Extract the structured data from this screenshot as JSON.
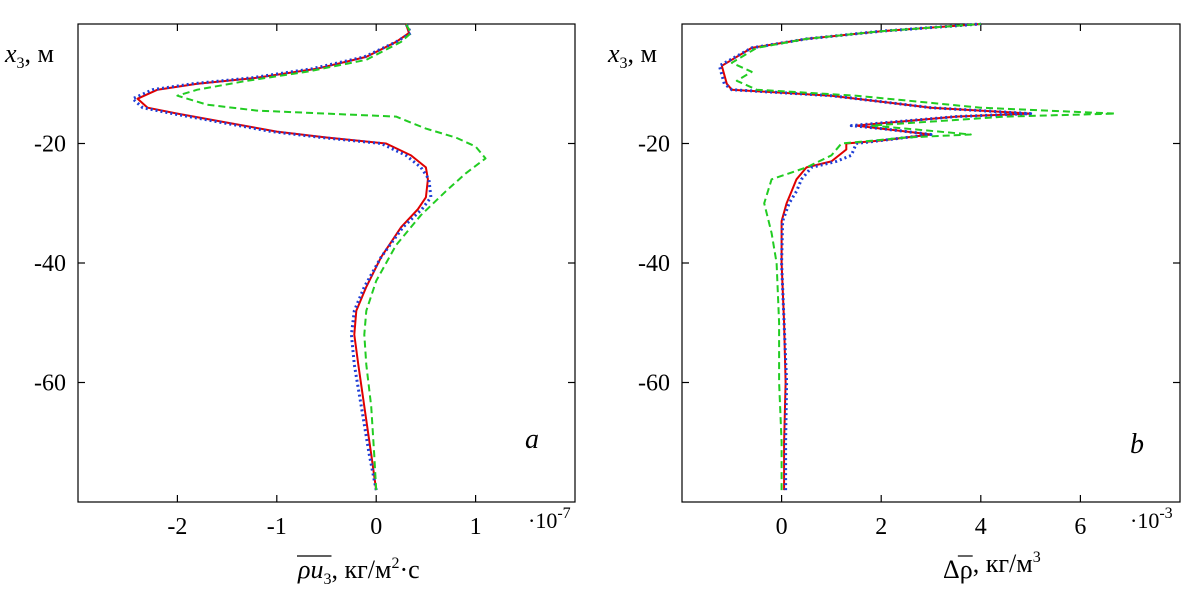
{
  "chart_data": [
    {
      "type": "line",
      "panel_label": "a",
      "xlabel_parts": {
        "main": "ρu",
        "sub": "3",
        "units": ", кг/м",
        "sup": "2",
        "tail": "·с"
      },
      "ylabel_parts": {
        "main": "x",
        "sub": "3",
        "units": ", м"
      },
      "x_scale_label": {
        "base": "·10",
        "exp": "-7"
      },
      "xlim": [
        -3.0,
        2.0
      ],
      "ylim": [
        -80,
        0
      ],
      "xticks": [
        -2,
        -1,
        0,
        1
      ],
      "xtick_labels": [
        "-2",
        "-1",
        "0",
        "1"
      ],
      "yticks": [
        -20,
        -40,
        -60
      ],
      "ytick_labels": [
        "-20",
        "-40",
        "-60"
      ],
      "series": [
        {
          "color": "#e00000",
          "dash": "solid",
          "width": 2,
          "points": [
            [
              0.0,
              -78
            ],
            [
              -0.05,
              -72
            ],
            [
              -0.12,
              -64
            ],
            [
              -0.18,
              -57
            ],
            [
              -0.22,
              -52
            ],
            [
              -0.2,
              -48
            ],
            [
              -0.1,
              -44
            ],
            [
              0.05,
              -39
            ],
            [
              0.25,
              -34
            ],
            [
              0.42,
              -31
            ],
            [
              0.5,
              -29
            ],
            [
              0.52,
              -26
            ],
            [
              0.5,
              -24
            ],
            [
              0.35,
              -22
            ],
            [
              0.1,
              -20
            ],
            [
              -0.5,
              -19
            ],
            [
              -1.0,
              -18
            ],
            [
              -1.5,
              -16.5
            ],
            [
              -2.0,
              -15
            ],
            [
              -2.3,
              -14
            ],
            [
              -2.4,
              -12.5
            ],
            [
              -2.2,
              -11
            ],
            [
              -1.8,
              -10
            ],
            [
              -1.2,
              -9
            ],
            [
              -0.6,
              -7.5
            ],
            [
              -0.1,
              -5.5
            ],
            [
              0.2,
              -3
            ],
            [
              0.33,
              -1.5
            ],
            [
              0.3,
              0
            ]
          ]
        },
        {
          "color": "#1f3fd6",
          "dash": "dotted",
          "width": 3,
          "points": [
            [
              0.0,
              -78
            ],
            [
              -0.07,
              -72
            ],
            [
              -0.15,
              -64
            ],
            [
              -0.22,
              -57
            ],
            [
              -0.25,
              -52
            ],
            [
              -0.22,
              -48
            ],
            [
              -0.12,
              -44
            ],
            [
              0.05,
              -39
            ],
            [
              0.27,
              -34
            ],
            [
              0.46,
              -31
            ],
            [
              0.55,
              -29
            ],
            [
              0.53,
              -26
            ],
            [
              0.45,
              -24
            ],
            [
              0.3,
              -22
            ],
            [
              0.05,
              -20
            ],
            [
              -0.55,
              -19
            ],
            [
              -1.05,
              -18
            ],
            [
              -1.55,
              -16.5
            ],
            [
              -2.05,
              -15
            ],
            [
              -2.35,
              -14
            ],
            [
              -2.45,
              -12.5
            ],
            [
              -2.25,
              -11
            ],
            [
              -1.85,
              -10
            ],
            [
              -1.25,
              -9
            ],
            [
              -0.65,
              -7.5
            ],
            [
              -0.12,
              -5.5
            ],
            [
              0.2,
              -3
            ],
            [
              0.35,
              -1.5
            ],
            [
              0.3,
              0
            ]
          ]
        },
        {
          "color": "#22cc22",
          "dash": "dashed",
          "width": 2,
          "points": [
            [
              0.0,
              -78
            ],
            [
              -0.02,
              -72
            ],
            [
              -0.05,
              -64
            ],
            [
              -0.1,
              -57
            ],
            [
              -0.12,
              -52
            ],
            [
              -0.1,
              -48
            ],
            [
              0.0,
              -43
            ],
            [
              0.2,
              -37
            ],
            [
              0.45,
              -32
            ],
            [
              0.7,
              -28
            ],
            [
              0.9,
              -25
            ],
            [
              1.1,
              -22.5
            ],
            [
              1.0,
              -20.5
            ],
            [
              0.8,
              -19
            ],
            [
              0.5,
              -17.5
            ],
            [
              0.2,
              -15.5
            ],
            [
              -0.5,
              -15
            ],
            [
              -1.2,
              -14.5
            ],
            [
              -1.7,
              -13.5
            ],
            [
              -2.0,
              -12
            ],
            [
              -1.8,
              -11
            ],
            [
              -1.3,
              -9.5
            ],
            [
              -0.7,
              -8
            ],
            [
              -0.1,
              -6
            ],
            [
              0.25,
              -3
            ],
            [
              0.35,
              -1.5
            ],
            [
              0.3,
              0
            ]
          ]
        }
      ]
    },
    {
      "type": "line",
      "panel_label": "b",
      "xlabel_parts": {
        "main": "Δρ",
        "sub": "",
        "units": ", кг/м",
        "sup": "3",
        "tail": ""
      },
      "ylabel_parts": {
        "main": "x",
        "sub": "3",
        "units": ", м"
      },
      "x_scale_label": {
        "base": "·10",
        "exp": "-3"
      },
      "xlim": [
        -2.0,
        8.0
      ],
      "ylim": [
        -80,
        0
      ],
      "xticks": [
        0,
        2,
        4,
        6
      ],
      "xtick_labels": [
        "0",
        "2",
        "4",
        "6"
      ],
      "yticks": [
        -20,
        -40,
        -60
      ],
      "ytick_labels": [
        "-20",
        "-40",
        "-60"
      ],
      "series": [
        {
          "color": "#e00000",
          "dash": "solid",
          "width": 2,
          "points": [
            [
              0.05,
              -78
            ],
            [
              0.05,
              -70
            ],
            [
              0.08,
              -60
            ],
            [
              0.05,
              -50
            ],
            [
              0.0,
              -40
            ],
            [
              0.0,
              -33
            ],
            [
              0.1,
              -30
            ],
            [
              0.2,
              -28
            ],
            [
              0.3,
              -26
            ],
            [
              0.5,
              -24
            ],
            [
              1.0,
              -23
            ],
            [
              1.3,
              -21
            ],
            [
              1.3,
              -20
            ],
            [
              2.0,
              -19.5
            ],
            [
              3.0,
              -18.5
            ],
            [
              2.0,
              -17.5
            ],
            [
              1.5,
              -17
            ],
            [
              3.5,
              -15.5
            ],
            [
              5.0,
              -15
            ],
            [
              3.0,
              -14
            ],
            [
              1.0,
              -12
            ],
            [
              -1.0,
              -11
            ],
            [
              -1.1,
              -10
            ],
            [
              -1.2,
              -7
            ],
            [
              -0.6,
              -4
            ],
            [
              0.5,
              -2.5
            ],
            [
              2.0,
              -1.2
            ],
            [
              4.0,
              0
            ]
          ]
        },
        {
          "color": "#1f3fd6",
          "dash": "dotted",
          "width": 3,
          "points": [
            [
              0.08,
              -78
            ],
            [
              0.08,
              -70
            ],
            [
              0.1,
              -60
            ],
            [
              0.05,
              -50
            ],
            [
              0.0,
              -40
            ],
            [
              0.02,
              -33
            ],
            [
              0.15,
              -30
            ],
            [
              0.3,
              -28
            ],
            [
              0.4,
              -26
            ],
            [
              0.6,
              -24
            ],
            [
              1.1,
              -23
            ],
            [
              1.4,
              -22
            ],
            [
              1.5,
              -20
            ],
            [
              2.0,
              -19.5
            ],
            [
              3.0,
              -18.5
            ],
            [
              2.0,
              -17.5
            ],
            [
              1.4,
              -17
            ],
            [
              3.5,
              -15.5
            ],
            [
              5.0,
              -15
            ],
            [
              3.0,
              -14
            ],
            [
              1.0,
              -12
            ],
            [
              -1.0,
              -11
            ],
            [
              -1.15,
              -10
            ],
            [
              -1.25,
              -7
            ],
            [
              -0.6,
              -4
            ],
            [
              0.5,
              -2.5
            ],
            [
              2.0,
              -1.2
            ],
            [
              4.0,
              0
            ]
          ]
        },
        {
          "color": "#22cc22",
          "dash": "dashed",
          "width": 2,
          "points": [
            [
              0.0,
              -78
            ],
            [
              0.0,
              -70
            ],
            [
              -0.05,
              -60
            ],
            [
              -0.05,
              -50
            ],
            [
              -0.1,
              -40
            ],
            [
              -0.2,
              -35
            ],
            [
              -0.35,
              -30
            ],
            [
              -0.2,
              -26
            ],
            [
              0.5,
              -24
            ],
            [
              1.0,
              -22
            ],
            [
              1.2,
              -20
            ],
            [
              2.5,
              -19
            ],
            [
              3.8,
              -18.5
            ],
            [
              2.5,
              -17.5
            ],
            [
              1.8,
              -17
            ],
            [
              4.5,
              -15.5
            ],
            [
              6.7,
              -15
            ],
            [
              4.0,
              -14
            ],
            [
              1.5,
              -12
            ],
            [
              -0.5,
              -11
            ],
            [
              -0.9,
              -9.5
            ],
            [
              -0.6,
              -8
            ],
            [
              -1.0,
              -6.5
            ],
            [
              -0.5,
              -4
            ],
            [
              0.5,
              -2.5
            ],
            [
              2.0,
              -1.2
            ],
            [
              4.0,
              0
            ]
          ]
        }
      ]
    }
  ]
}
